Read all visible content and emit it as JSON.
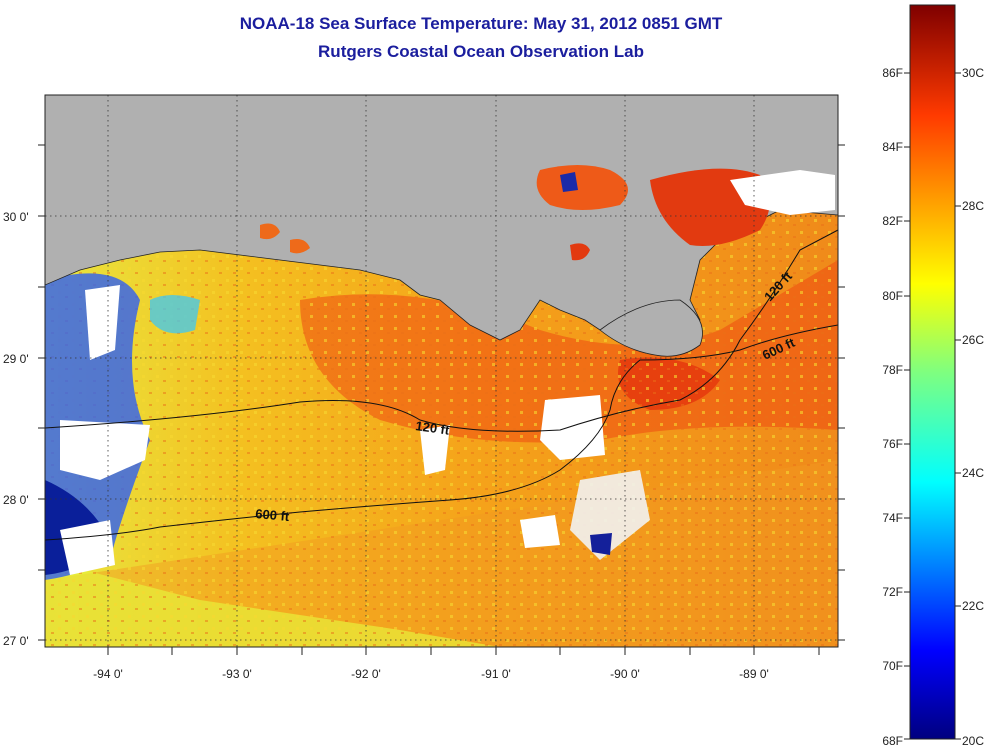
{
  "title": {
    "line1": "NOAA-18 Sea Surface Temperature:  May 31, 2012 0851 GMT",
    "line2": "Rutgers Coastal Ocean Observation Lab"
  },
  "map": {
    "lon_labels": [
      "-94 0'",
      "-93 0'",
      "-92 0'",
      "-91 0'",
      "-90 0'",
      "-89 0'"
    ],
    "lat_labels": [
      "30 0'",
      "29 0'",
      "28 0'",
      "27 0'"
    ],
    "contour_labels": [
      "120 ft",
      "600 ft",
      "120 ft",
      "600 ft"
    ],
    "colors": {
      "land": "#b0b0b0",
      "no_data": "#ffffff",
      "grid": "#333333"
    }
  },
  "colorbar": {
    "fahrenheit_labels": [
      "86F",
      "84F",
      "82F",
      "80F",
      "78F",
      "76F",
      "74F",
      "72F",
      "70F",
      "68F"
    ],
    "celsius_labels": [
      "30C",
      "28C",
      "26C",
      "24C",
      "22C",
      "20C"
    ],
    "range_c": [
      20,
      31.5
    ],
    "colormap": "jet"
  }
}
